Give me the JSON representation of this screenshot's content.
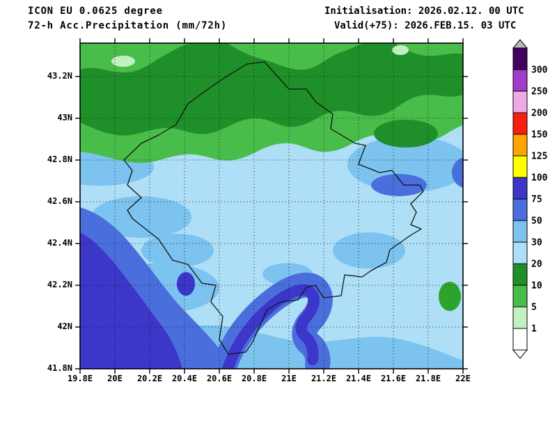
{
  "header": {
    "model": "ICON EU 0.0625 degree",
    "product": "72-h Acc.Precipitation (mm/72h)",
    "init": "Initialisation: 2026.02.12. 00 UTC",
    "valid": "Valid(+75): 2026.FEB.15. 03 UTC"
  },
  "map": {
    "y_axis": [
      "43.2N",
      "43N",
      "42.8N",
      "42.6N",
      "42.4N",
      "42.2N",
      "42N",
      "41.8N"
    ],
    "x_axis": [
      "19.8E",
      "20E",
      "20.2E",
      "20.4E",
      "20.6E",
      "20.8E",
      "21E",
      "21.2E",
      "21.4E",
      "21.6E",
      "21.8E",
      "22E"
    ],
    "outline_region": "Kosovo border"
  },
  "palette": {
    "white": "#ffffff",
    "pale_green": "#c3f0c3",
    "green": "#49bd49",
    "dark_green": "#1f8f29",
    "medium_green": "#2ca42c",
    "pale_blue": "#aedff7",
    "light_blue": "#7cc3ef",
    "blue": "#4a6fdd",
    "indigo": "#3c36c9",
    "yellow": "#ffff00",
    "orange": "#ffa500",
    "red": "#f81e10",
    "pink": "#eeaae8",
    "purple": "#a03cc8",
    "dark_purple": "#44005e",
    "gray": "#b9b9b9"
  },
  "colorbar": {
    "arrow_top_key": "gray",
    "arrow_bottom_key": "white",
    "segments": [
      {
        "color_key": "dark_purple",
        "label": "300"
      },
      {
        "color_key": "purple",
        "label": "250"
      },
      {
        "color_key": "pink",
        "label": "200"
      },
      {
        "color_key": "red",
        "label": "150"
      },
      {
        "color_key": "orange",
        "label": "125"
      },
      {
        "color_key": "yellow",
        "label": "100"
      },
      {
        "color_key": "indigo",
        "label": "75"
      },
      {
        "color_key": "blue",
        "label": "50"
      },
      {
        "color_key": "light_blue",
        "label": "30"
      },
      {
        "color_key": "pale_blue",
        "label": "20"
      },
      {
        "color_key": "dark_green",
        "label": "10"
      },
      {
        "color_key": "green",
        "label": "5"
      },
      {
        "color_key": "pale_green",
        "label": "1"
      },
      {
        "color_key": "white"
      }
    ]
  },
  "chart_data": {
    "type": "filled_contour_map",
    "title": "72-h Acc.Precipitation (mm/72h)",
    "model": "ICON EU 0.0625 degree",
    "initialisation": "2026.02.12. 00 UTC",
    "valid": "2026.FEB.15. 03 UTC (+75)",
    "unit": "mm/72h",
    "lon_ticks_deg_e": [
      19.8,
      20,
      20.2,
      20.4,
      20.6,
      20.8,
      21,
      21.2,
      21.4,
      21.6,
      21.8,
      22
    ],
    "lat_ticks_deg_n": [
      41.8,
      42,
      42.2,
      42.4,
      42.6,
      42.8,
      43,
      43.2
    ],
    "levels_mm": [
      1,
      5,
      10,
      20,
      30,
      50,
      75,
      100,
      125,
      150,
      200,
      250,
      300
    ],
    "legend_position": "right",
    "outline_region": "Kosovo",
    "field_summary": [
      {
        "zone": "northern strip around 43N-43.3N",
        "range_mm": "5-20 (green shades)"
      },
      {
        "zone": "small pale spots along northern band",
        "range_mm": "1-5"
      },
      {
        "zone": "central area (Kosovo interior)",
        "range_mm": "20-30"
      },
      {
        "zone": "scattered patches mid-map and lower right",
        "range_mm": "30-50"
      },
      {
        "zone": "southwest corner",
        "range_mm": "75-100"
      },
      {
        "zone": "southern arc near 20.6E-21.2E, 41.8N-42.2N",
        "range_mm": "50-100"
      },
      {
        "zone": "small oval near 21.85E 42.15N",
        "range_mm": "10-20"
      }
    ]
  }
}
